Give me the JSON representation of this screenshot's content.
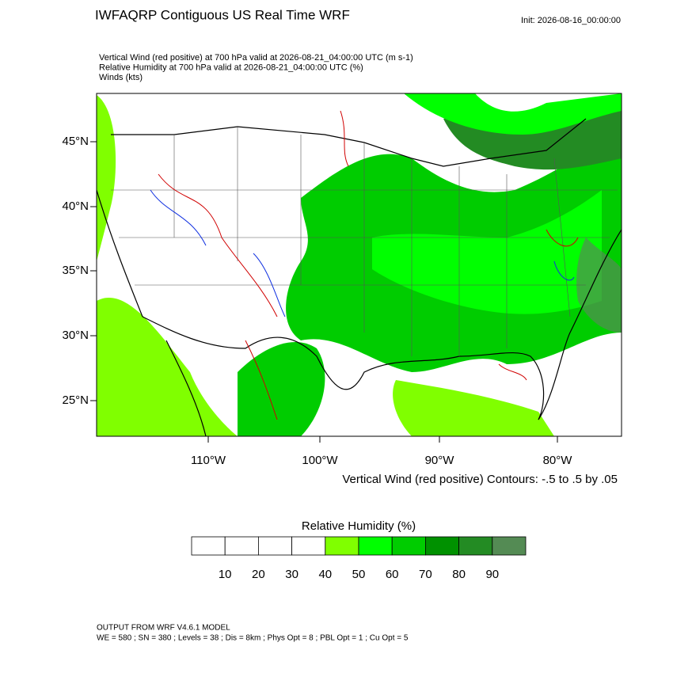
{
  "title": "IWFAQRP Contiguous US Real Time WRF",
  "init": "Init: 2026-08-16_00:00:00",
  "fields": [
    "Vertical Wind (red positive) at 700 hPa valid at 2026-08-21_04:00:00 UTC   (m s-1)",
    "Relative Humidity at 700 hPa valid at 2026-08-21_04:00:00 UTC   (%)",
    "Winds   (kts)"
  ],
  "map": {
    "lat_labels": [
      "45°N",
      "40°N",
      "35°N",
      "30°N",
      "25°N"
    ],
    "lon_labels": [
      "110°W",
      "100°W",
      "90°W",
      "80°W"
    ],
    "contour_note": "Vertical Wind (red positive) Contours: -.5 to .5 by .05"
  },
  "colorbar": {
    "title": "Relative Humidity  (%)",
    "colors": [
      "#ffffff",
      "#ffffff",
      "#ffffff",
      "#ffffff",
      "#80ff00",
      "#00ff00",
      "#00cc00",
      "#009100",
      "#238b23",
      "#548b54"
    ],
    "labels": [
      "10",
      "20",
      "30",
      "40",
      "50",
      "60",
      "70",
      "80",
      "90"
    ]
  },
  "footer": [
    "OUTPUT FROM WRF V4.6.1 MODEL",
    "WE = 580 ; SN = 380 ; Levels = 38 ; Dis = 8km ; Phys Opt = 8 ; PBL Opt = 1 ; Cu Opt = 5"
  ]
}
